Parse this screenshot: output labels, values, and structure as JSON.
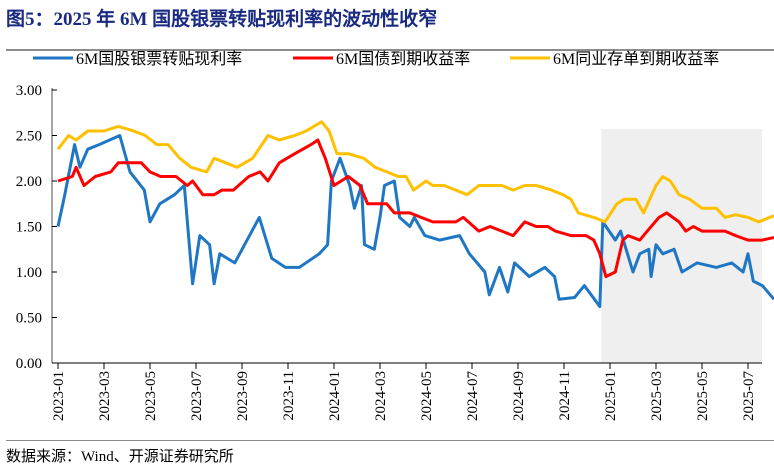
{
  "title": "图5：2025 年 6M 国股银票转贴现利率的波动性收窄",
  "source": "数据来源：Wind、开源证券研究所",
  "chart_data": {
    "type": "line",
    "title": "图5：2025 年 6M 国股银票转贴现利率的波动性收窄",
    "xlabel": "",
    "ylabel": "",
    "ylim": [
      0,
      3
    ],
    "yticks": [
      "0.00",
      "0.50",
      "1.00",
      "1.50",
      "2.00",
      "2.50",
      "3.00"
    ],
    "xlim": [
      "2023-01-01",
      "2025-08-15"
    ],
    "xticks": [
      "2023-01",
      "2023-03",
      "2023-05",
      "2023-07",
      "2023-09",
      "2023-11",
      "2024-01",
      "2024-03",
      "2024-05",
      "2024-07",
      "2024-09",
      "2024-11",
      "2025-01",
      "2025-03",
      "2025-05",
      "2025-07"
    ],
    "grid": false,
    "legend_position": "top",
    "highlight_range": [
      "2024-12-20",
      "2025-08-15"
    ],
    "highlight_color": "#efefef",
    "series": [
      {
        "name": "6M国股银票转贴现利率",
        "color": "#1f77c4",
        "points": [
          [
            "2023-01-01",
            1.5
          ],
          [
            "2023-01-10",
            1.85
          ],
          [
            "2023-01-23",
            2.4
          ],
          [
            "2023-01-30",
            2.15
          ],
          [
            "2023-02-10",
            2.35
          ],
          [
            "2023-02-25",
            2.4
          ],
          [
            "2023-03-22",
            2.5
          ],
          [
            "2023-04-05",
            2.1
          ],
          [
            "2023-04-24",
            1.9
          ],
          [
            "2023-05-01",
            1.55
          ],
          [
            "2023-05-14",
            1.75
          ],
          [
            "2023-06-03",
            1.85
          ],
          [
            "2023-06-16",
            1.95
          ],
          [
            "2023-06-27",
            0.87
          ],
          [
            "2023-07-06",
            1.4
          ],
          [
            "2023-07-19",
            1.3
          ],
          [
            "2023-07-25",
            0.87
          ],
          [
            "2023-08-02",
            1.2
          ],
          [
            "2023-08-22",
            1.1
          ],
          [
            "2023-09-24",
            1.6
          ],
          [
            "2023-10-10",
            1.15
          ],
          [
            "2023-10-28",
            1.05
          ],
          [
            "2023-11-16",
            1.05
          ],
          [
            "2023-12-12",
            1.2
          ],
          [
            "2023-12-23",
            1.3
          ],
          [
            "2023-12-28",
            2.0
          ],
          [
            "2024-01-09",
            2.25
          ],
          [
            "2024-01-22",
            1.95
          ],
          [
            "2024-01-28",
            1.7
          ],
          [
            "2024-02-07",
            1.95
          ],
          [
            "2024-02-11",
            1.3
          ],
          [
            "2024-02-24",
            1.25
          ],
          [
            "2024-03-01",
            1.6
          ],
          [
            "2024-03-07",
            1.95
          ],
          [
            "2024-03-20",
            2.0
          ],
          [
            "2024-03-27",
            1.6
          ],
          [
            "2024-04-10",
            1.5
          ],
          [
            "2024-04-16",
            1.6
          ],
          [
            "2024-04-30",
            1.4
          ],
          [
            "2024-05-19",
            1.35
          ],
          [
            "2024-06-15",
            1.4
          ],
          [
            "2024-06-28",
            1.2
          ],
          [
            "2024-07-18",
            1.0
          ],
          [
            "2024-07-24",
            0.75
          ],
          [
            "2024-08-07",
            1.05
          ],
          [
            "2024-08-18",
            0.78
          ],
          [
            "2024-08-27",
            1.1
          ],
          [
            "2024-09-16",
            0.95
          ],
          [
            "2024-10-06",
            1.05
          ],
          [
            "2024-10-19",
            0.95
          ],
          [
            "2024-10-25",
            0.7
          ],
          [
            "2024-11-15",
            0.72
          ],
          [
            "2024-11-28",
            0.85
          ],
          [
            "2024-12-11",
            0.7
          ],
          [
            "2024-12-18",
            0.62
          ],
          [
            "2024-12-22",
            1.55
          ],
          [
            "2025-01-08",
            1.35
          ],
          [
            "2025-01-15",
            1.45
          ],
          [
            "2025-02-01",
            1.0
          ],
          [
            "2025-02-10",
            1.2
          ],
          [
            "2025-02-22",
            1.25
          ],
          [
            "2025-02-25",
            0.95
          ],
          [
            "2025-03-01",
            1.3
          ],
          [
            "2025-03-10",
            1.2
          ],
          [
            "2025-03-25",
            1.25
          ],
          [
            "2025-04-05",
            1.0
          ],
          [
            "2025-04-25",
            1.1
          ],
          [
            "2025-05-20",
            1.05
          ],
          [
            "2025-06-10",
            1.1
          ],
          [
            "2025-06-25",
            1.0
          ],
          [
            "2025-07-01",
            1.2
          ],
          [
            "2025-07-08",
            0.9
          ],
          [
            "2025-07-20",
            0.85
          ],
          [
            "2025-08-05",
            0.7
          ]
        ]
      },
      {
        "name": "6M国债到期收益率",
        "color": "#ff0000",
        "points": [
          [
            "2023-01-01",
            2.0
          ],
          [
            "2023-01-20",
            2.05
          ],
          [
            "2023-01-25",
            2.15
          ],
          [
            "2023-02-05",
            1.95
          ],
          [
            "2023-02-20",
            2.05
          ],
          [
            "2023-03-10",
            2.1
          ],
          [
            "2023-03-20",
            2.2
          ],
          [
            "2023-04-20",
            2.2
          ],
          [
            "2023-05-01",
            2.1
          ],
          [
            "2023-05-15",
            2.05
          ],
          [
            "2023-06-05",
            2.05
          ],
          [
            "2023-06-20",
            1.95
          ],
          [
            "2023-06-27",
            2.0
          ],
          [
            "2023-07-10",
            1.85
          ],
          [
            "2023-07-25",
            1.85
          ],
          [
            "2023-08-05",
            1.9
          ],
          [
            "2023-08-20",
            1.9
          ],
          [
            "2023-09-10",
            2.05
          ],
          [
            "2023-09-25",
            2.1
          ],
          [
            "2023-10-05",
            2.0
          ],
          [
            "2023-10-20",
            2.2
          ],
          [
            "2023-11-10",
            2.3
          ],
          [
            "2023-12-01",
            2.4
          ],
          [
            "2023-12-10",
            2.45
          ],
          [
            "2023-12-20",
            2.25
          ],
          [
            "2024-01-01",
            1.95
          ],
          [
            "2024-01-20",
            2.05
          ],
          [
            "2024-02-05",
            1.95
          ],
          [
            "2024-02-15",
            1.75
          ],
          [
            "2024-03-10",
            1.75
          ],
          [
            "2024-03-20",
            1.65
          ],
          [
            "2024-04-10",
            1.65
          ],
          [
            "2024-04-25",
            1.6
          ],
          [
            "2024-05-10",
            1.55
          ],
          [
            "2024-05-25",
            1.55
          ],
          [
            "2024-06-10",
            1.55
          ],
          [
            "2024-06-20",
            1.6
          ],
          [
            "2024-07-10",
            1.45
          ],
          [
            "2024-07-25",
            1.5
          ],
          [
            "2024-08-10",
            1.45
          ],
          [
            "2024-08-25",
            1.4
          ],
          [
            "2024-09-10",
            1.55
          ],
          [
            "2024-09-25",
            1.5
          ],
          [
            "2024-10-10",
            1.5
          ],
          [
            "2024-10-20",
            1.45
          ],
          [
            "2024-11-10",
            1.4
          ],
          [
            "2024-11-30",
            1.4
          ],
          [
            "2024-12-10",
            1.35
          ],
          [
            "2024-12-18",
            1.2
          ],
          [
            "2024-12-26",
            0.95
          ],
          [
            "2025-01-08",
            1.0
          ],
          [
            "2025-01-18",
            1.35
          ],
          [
            "2025-01-25",
            1.4
          ],
          [
            "2025-02-10",
            1.35
          ],
          [
            "2025-02-20",
            1.45
          ],
          [
            "2025-03-05",
            1.6
          ],
          [
            "2025-03-15",
            1.65
          ],
          [
            "2025-04-01",
            1.55
          ],
          [
            "2025-04-10",
            1.45
          ],
          [
            "2025-04-20",
            1.5
          ],
          [
            "2025-05-01",
            1.45
          ],
          [
            "2025-05-15",
            1.45
          ],
          [
            "2025-06-01",
            1.45
          ],
          [
            "2025-06-15",
            1.4
          ],
          [
            "2025-07-01",
            1.35
          ],
          [
            "2025-07-20",
            1.35
          ],
          [
            "2025-08-05",
            1.38
          ]
        ]
      },
      {
        "name": "6M同业存单到期收益率",
        "color": "#ffc000",
        "points": [
          [
            "2023-01-01",
            2.35
          ],
          [
            "2023-01-15",
            2.5
          ],
          [
            "2023-01-25",
            2.45
          ],
          [
            "2023-02-10",
            2.55
          ],
          [
            "2023-03-01",
            2.55
          ],
          [
            "2023-03-20",
            2.6
          ],
          [
            "2023-04-10",
            2.55
          ],
          [
            "2023-04-25",
            2.5
          ],
          [
            "2023-05-10",
            2.4
          ],
          [
            "2023-05-25",
            2.4
          ],
          [
            "2023-06-10",
            2.25
          ],
          [
            "2023-06-25",
            2.15
          ],
          [
            "2023-07-15",
            2.1
          ],
          [
            "2023-07-25",
            2.25
          ],
          [
            "2023-08-10",
            2.2
          ],
          [
            "2023-08-25",
            2.15
          ],
          [
            "2023-09-15",
            2.25
          ],
          [
            "2023-10-05",
            2.5
          ],
          [
            "2023-10-20",
            2.45
          ],
          [
            "2023-11-10",
            2.5
          ],
          [
            "2023-11-25",
            2.55
          ],
          [
            "2023-12-15",
            2.65
          ],
          [
            "2023-12-25",
            2.55
          ],
          [
            "2024-01-05",
            2.3
          ],
          [
            "2024-01-20",
            2.3
          ],
          [
            "2024-02-10",
            2.25
          ],
          [
            "2024-02-25",
            2.15
          ],
          [
            "2024-03-10",
            2.1
          ],
          [
            "2024-03-25",
            2.05
          ],
          [
            "2024-04-05",
            2.05
          ],
          [
            "2024-04-15",
            1.9
          ],
          [
            "2024-05-01",
            2.0
          ],
          [
            "2024-05-10",
            1.95
          ],
          [
            "2024-05-25",
            1.95
          ],
          [
            "2024-06-10",
            1.9
          ],
          [
            "2024-06-25",
            1.85
          ],
          [
            "2024-07-10",
            1.95
          ],
          [
            "2024-07-25",
            1.95
          ],
          [
            "2024-08-10",
            1.95
          ],
          [
            "2024-08-25",
            1.9
          ],
          [
            "2024-09-10",
            1.95
          ],
          [
            "2024-09-25",
            1.95
          ],
          [
            "2024-10-15",
            1.9
          ],
          [
            "2024-10-30",
            1.85
          ],
          [
            "2024-11-10",
            1.8
          ],
          [
            "2024-11-20",
            1.65
          ],
          [
            "2024-12-10",
            1.6
          ],
          [
            "2024-12-25",
            1.55
          ],
          [
            "2025-01-10",
            1.75
          ],
          [
            "2025-01-20",
            1.8
          ],
          [
            "2025-02-05",
            1.8
          ],
          [
            "2025-02-15",
            1.65
          ],
          [
            "2025-03-01",
            1.95
          ],
          [
            "2025-03-10",
            2.05
          ],
          [
            "2025-03-20",
            2.0
          ],
          [
            "2025-04-01",
            1.85
          ],
          [
            "2025-04-15",
            1.8
          ],
          [
            "2025-05-01",
            1.7
          ],
          [
            "2025-05-20",
            1.7
          ],
          [
            "2025-06-01",
            1.6
          ],
          [
            "2025-06-15",
            1.63
          ],
          [
            "2025-07-01",
            1.6
          ],
          [
            "2025-07-15",
            1.55
          ],
          [
            "2025-08-05",
            1.62
          ]
        ]
      }
    ]
  }
}
